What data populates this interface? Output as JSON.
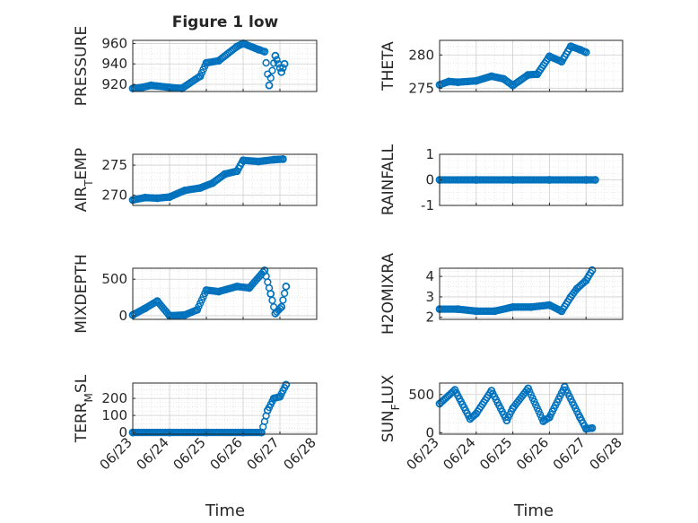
{
  "figure": {
    "title": "Figure 1 low",
    "xlabel_left": "Time",
    "xlabel_right": "Time",
    "date_ticks": [
      "06/23",
      "06/24",
      "06/25",
      "06/26",
      "06/27",
      "06/28"
    ],
    "marker_color": "#0072BD"
  },
  "chart_data": [
    {
      "type": "scatter",
      "id": "pressure",
      "ylabel": "PRESSURE",
      "ylim": [
        913,
        963
      ],
      "yticks": [
        920,
        940,
        960
      ],
      "x": [
        "2022-06-23T00:00",
        "2022-06-23T06:00",
        "2022-06-23T12:00",
        "2022-06-24T00:00",
        "2022-06-24T08:00",
        "2022-06-24T20:00",
        "2022-06-25T00:00",
        "2022-06-25T08:00",
        "2022-06-25T20:00",
        "2022-06-26T00:00",
        "2022-06-26T10:00",
        "2022-06-26T14:00",
        "2022-06-26T17:00",
        "2022-06-26T21:00",
        "2022-06-27T01:00",
        "2022-06-27T03:00"
      ],
      "values": [
        916,
        917,
        919,
        917,
        916,
        928,
        941,
        943,
        957,
        960,
        954,
        952,
        919,
        948,
        932,
        940
      ],
      "grid": true,
      "marker": "circle"
    },
    {
      "type": "scatter",
      "id": "theta",
      "ylabel": "THETA",
      "ylim": [
        274.5,
        282.2
      ],
      "yticks": [
        275,
        280
      ],
      "x": [
        "2022-06-23T00:00",
        "2022-06-23T06:00",
        "2022-06-23T12:00",
        "2022-06-24T00:00",
        "2022-06-24T10:00",
        "2022-06-24T18:00",
        "2022-06-25T00:00",
        "2022-06-25T10:00",
        "2022-06-25T16:00",
        "2022-06-26T00:00",
        "2022-06-26T08:00",
        "2022-06-26T14:00",
        "2022-06-26T20:00",
        "2022-06-27T00:00"
      ],
      "values": [
        275.5,
        276.0,
        275.9,
        276.1,
        276.8,
        276.4,
        275.4,
        277.0,
        277.1,
        279.8,
        279.0,
        281.3,
        280.8,
        280.4
      ],
      "grid": true,
      "marker": "circle"
    },
    {
      "type": "scatter",
      "id": "air-temp",
      "ylabel": "AIR_TEMP",
      "ylim": [
        268.3,
        276.8
      ],
      "yticks": [
        270,
        275
      ],
      "x": [
        "2022-06-23T00:00",
        "2022-06-23T08:00",
        "2022-06-23T16:00",
        "2022-06-24T00:00",
        "2022-06-24T10:00",
        "2022-06-24T20:00",
        "2022-06-25T04:00",
        "2022-06-25T12:00",
        "2022-06-25T20:00",
        "2022-06-26T00:00",
        "2022-06-26T10:00",
        "2022-06-26T20:00",
        "2022-06-27T02:00"
      ],
      "values": [
        269.2,
        269.6,
        269.5,
        269.7,
        270.8,
        271.2,
        272.0,
        273.5,
        274.0,
        275.8,
        275.6,
        275.9,
        276.0
      ],
      "grid": true,
      "marker": "circle"
    },
    {
      "type": "scatter",
      "id": "rainfall",
      "ylabel": "RAINFALL",
      "ylim": [
        -1,
        1
      ],
      "yticks": [
        -1,
        0,
        1
      ],
      "x": [
        "2022-06-23T00:00",
        "2022-06-24T00:00",
        "2022-06-25T00:00",
        "2022-06-26T00:00",
        "2022-06-27T00:00",
        "2022-06-27T06:00"
      ],
      "values": [
        0,
        0,
        0,
        0,
        0,
        0
      ],
      "grid": true,
      "marker": "circle"
    },
    {
      "type": "scatter",
      "id": "mixdepth",
      "ylabel": "MIXDEPTH",
      "ylim": [
        -50,
        650
      ],
      "yticks": [
        0,
        500
      ],
      "x": [
        "2022-06-23T00:00",
        "2022-06-23T08:00",
        "2022-06-23T16:00",
        "2022-06-24T00:00",
        "2022-06-24T10:00",
        "2022-06-24T18:00",
        "2022-06-25T00:00",
        "2022-06-25T08:00",
        "2022-06-25T20:00",
        "2022-06-26T04:00",
        "2022-06-26T14:00",
        "2022-06-26T18:00",
        "2022-06-26T21:00",
        "2022-06-27T01:00",
        "2022-06-27T04:00"
      ],
      "values": [
        10,
        100,
        200,
        0,
        10,
        80,
        350,
        330,
        400,
        380,
        620,
        300,
        30,
        120,
        400
      ],
      "grid": true,
      "marker": "circle"
    },
    {
      "type": "scatter",
      "id": "h2omixra",
      "ylabel": "H2OMIXRA",
      "ylim": [
        1.9,
        4.4
      ],
      "yticks": [
        2,
        3,
        4
      ],
      "x": [
        "2022-06-23T00:00",
        "2022-06-23T12:00",
        "2022-06-24T00:00",
        "2022-06-24T12:00",
        "2022-06-25T00:00",
        "2022-06-25T12:00",
        "2022-06-26T00:00",
        "2022-06-26T08:00",
        "2022-06-26T14:00",
        "2022-06-26T18:00",
        "2022-06-27T00:00",
        "2022-06-27T04:00"
      ],
      "values": [
        2.4,
        2.4,
        2.3,
        2.3,
        2.5,
        2.5,
        2.6,
        2.3,
        3.0,
        3.4,
        3.8,
        4.3
      ],
      "grid": true,
      "marker": "circle"
    },
    {
      "type": "scatter",
      "id": "terr-msl",
      "ylabel": "TERR_MSL",
      "ylim": [
        -10,
        290
      ],
      "yticks": [
        0,
        100,
        200
      ],
      "x": [
        "2022-06-23T00:00",
        "2022-06-24T00:00",
        "2022-06-25T00:00",
        "2022-06-26T00:00",
        "2022-06-26T12:00",
        "2022-06-26T16:00",
        "2022-06-26T20:00",
        "2022-06-27T00:00",
        "2022-06-27T04:00"
      ],
      "values": [
        0,
        0,
        0,
        0,
        0,
        130,
        200,
        210,
        280
      ],
      "grid": true,
      "marker": "circle"
    },
    {
      "type": "scatter",
      "id": "sun-flux",
      "ylabel": "SUN_FLUX",
      "ylim": [
        -20,
        650
      ],
      "yticks": [
        0,
        500
      ],
      "x": [
        "2022-06-23T00:00",
        "2022-06-23T10:00",
        "2022-06-23T20:00",
        "2022-06-24T00:00",
        "2022-06-24T10:00",
        "2022-06-24T20:00",
        "2022-06-25T00:00",
        "2022-06-25T10:00",
        "2022-06-25T20:00",
        "2022-06-26T00:00",
        "2022-06-26T10:00",
        "2022-06-26T20:00",
        "2022-06-27T00:00",
        "2022-06-27T04:00"
      ],
      "values": [
        380,
        560,
        180,
        250,
        550,
        160,
        320,
        580,
        150,
        200,
        600,
        200,
        50,
        60
      ],
      "grid": true,
      "marker": "circle"
    }
  ]
}
